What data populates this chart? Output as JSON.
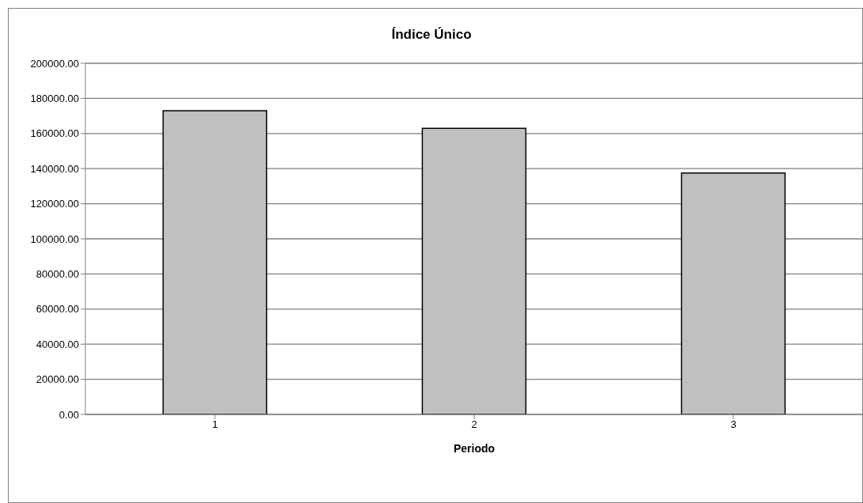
{
  "chart_data": {
    "type": "bar",
    "title": "Índice Único",
    "xlabel": "Periodo",
    "categories": [
      "1",
      "2",
      "3"
    ],
    "values": [
      173000,
      163000,
      137500
    ],
    "color": "#c0c0c0",
    "ylim": [
      0,
      200000
    ],
    "yticks": [
      {
        "value": 0,
        "label": "0.00"
      },
      {
        "value": 20000,
        "label": "20000.00"
      },
      {
        "value": 40000,
        "label": "40000.00"
      },
      {
        "value": 60000,
        "label": "60000.00"
      },
      {
        "value": 80000,
        "label": "80000.00"
      },
      {
        "value": 100000,
        "label": "100000.00"
      },
      {
        "value": 120000,
        "label": "120000.00"
      },
      {
        "value": 140000,
        "label": "140000.00"
      },
      {
        "value": 160000,
        "label": "160000.00"
      },
      {
        "value": 180000,
        "label": "180000.00"
      },
      {
        "value": 200000,
        "label": "200000.00"
      }
    ],
    "grid": "y"
  }
}
